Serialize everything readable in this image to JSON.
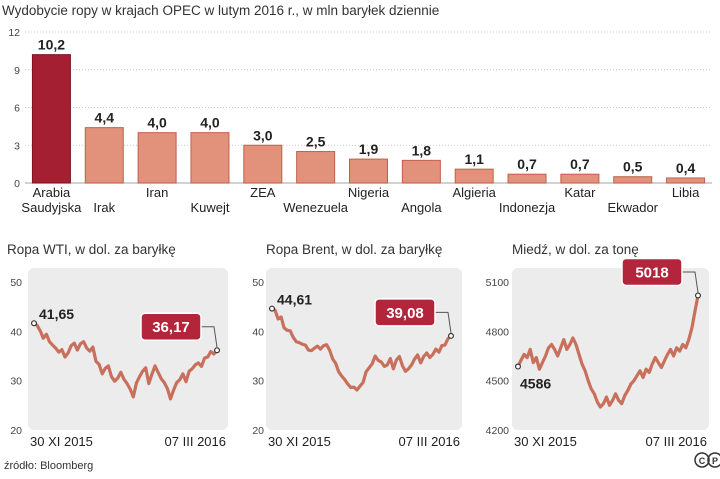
{
  "source": "źródło: Bloomberg",
  "logo": [
    "C",
    "P"
  ],
  "colors": {
    "bar_highlight": "#a51f32",
    "bar_normal": "#e2917b",
    "bar_edge": "#c45e4c",
    "line": "#c8705c",
    "panel_bg": "#ececec",
    "label_box": "#b2253a"
  },
  "chart_data": [
    {
      "type": "bar",
      "title": "Wydobycie ropy w krajach OPEC w lutym 2016 r., w mln baryłek dziennie",
      "ylim": [
        0,
        12
      ],
      "yticks": [
        0,
        3,
        6,
        9,
        12
      ],
      "categories": [
        [
          "Arabia",
          "Saudyjska"
        ],
        [
          "Irak"
        ],
        [
          "Iran"
        ],
        [
          "Kuwejt"
        ],
        [
          "ZEA"
        ],
        [
          "Wenezuela"
        ],
        [
          "Nigeria"
        ],
        [
          "Angola"
        ],
        [
          "Algieria"
        ],
        [
          "Indonezja"
        ],
        [
          "Katar"
        ],
        [
          "Ekwador"
        ],
        [
          "Libia"
        ]
      ],
      "values": [
        10.2,
        4.4,
        4.0,
        4.0,
        3.0,
        2.5,
        1.9,
        1.8,
        1.1,
        0.7,
        0.7,
        0.5,
        0.4
      ],
      "value_labels": [
        "10,2",
        "4,4",
        "4,0",
        "4,0",
        "3,0",
        "2,5",
        "1,9",
        "1,8",
        "1,1",
        "0,7",
        "0,7",
        "0,5",
        "0,4"
      ],
      "highlight_index": 0
    },
    {
      "type": "line",
      "title": "Ropa WTI, w dol. za baryłkę",
      "ylim": [
        20,
        50
      ],
      "yticks": [
        20,
        30,
        40,
        50
      ],
      "x_start_label": "30 XI 2015",
      "x_end_label": "07 III 2016",
      "start_value": 41.65,
      "start_label": "41,65",
      "end_value": 36.17,
      "end_label": "36,17",
      "values": [
        41.65,
        41.2,
        40.1,
        38.6,
        39.4,
        37.9,
        37.2,
        36.6,
        35.8,
        36.3,
        34.8,
        35.6,
        37.1,
        37.6,
        36.2,
        37.5,
        37.9,
        36.6,
        36.0,
        36.8,
        33.9,
        33.3,
        31.4,
        32.5,
        33.0,
        30.8,
        29.9,
        30.5,
        31.7,
        30.3,
        29.4,
        28.3,
        26.7,
        29.5,
        30.8,
        31.9,
        32.6,
        29.4,
        31.3,
        33.0,
        31.7,
        30.4,
        29.6,
        28.4,
        26.3,
        28.1,
        29.6,
        30.2,
        31.4,
        29.8,
        31.9,
        32.4,
        33.2,
        33.6,
        32.9,
        34.6,
        34.8,
        35.9,
        35.4,
        36.17
      ]
    },
    {
      "type": "line",
      "title": "Ropa Brent, w dol. za baryłkę",
      "ylim": [
        20,
        50
      ],
      "yticks": [
        20,
        30,
        40,
        50
      ],
      "x_start_label": "30 XI 2015",
      "x_end_label": "07 III 2016",
      "start_value": 44.61,
      "start_label": "44,61",
      "end_value": 39.08,
      "end_label": "39,08",
      "values": [
        44.61,
        44.3,
        42.5,
        42.9,
        40.7,
        40.2,
        40.1,
        38.8,
        37.9,
        37.7,
        37.4,
        37.2,
        36.2,
        36.1,
        36.6,
        37.0,
        36.4,
        37.1,
        37.3,
        36.2,
        34.4,
        33.5,
        31.8,
        30.9,
        30.2,
        29.3,
        28.6,
        28.7,
        28.1,
        28.9,
        29.6,
        31.8,
        32.6,
        33.4,
        35.0,
        34.1,
        33.8,
        32.9,
        33.2,
        34.5,
        32.4,
        34.2,
        34.9,
        33.0,
        31.9,
        32.4,
        33.2,
        34.4,
        35.2,
        33.6,
        34.9,
        35.6,
        34.7,
        35.3,
        36.4,
        35.8,
        37.1,
        37.2,
        38.5,
        39.08
      ]
    },
    {
      "type": "line",
      "title": "Miedź, w dol. za tonę",
      "ylim": [
        4200,
        5100
      ],
      "yticks": [
        4200,
        4500,
        4800,
        5100
      ],
      "x_start_label": "30 XI 2015",
      "x_end_label": "07 III 2016",
      "start_value": 4586,
      "start_label": "4586",
      "end_value": 5018,
      "end_label": "5018",
      "values": [
        4586,
        4625,
        4660,
        4640,
        4690,
        4610,
        4640,
        4570,
        4610,
        4650,
        4700,
        4720,
        4690,
        4650,
        4700,
        4750,
        4690,
        4720,
        4760,
        4720,
        4660,
        4600,
        4560,
        4500,
        4450,
        4420,
        4370,
        4340,
        4360,
        4400,
        4350,
        4380,
        4420,
        4380,
        4360,
        4410,
        4440,
        4480,
        4500,
        4530,
        4560,
        4520,
        4570,
        4550,
        4600,
        4640,
        4610,
        4580,
        4620,
        4660,
        4690,
        4650,
        4700,
        4680,
        4720,
        4700,
        4750,
        4820,
        4920,
        5018
      ]
    }
  ]
}
